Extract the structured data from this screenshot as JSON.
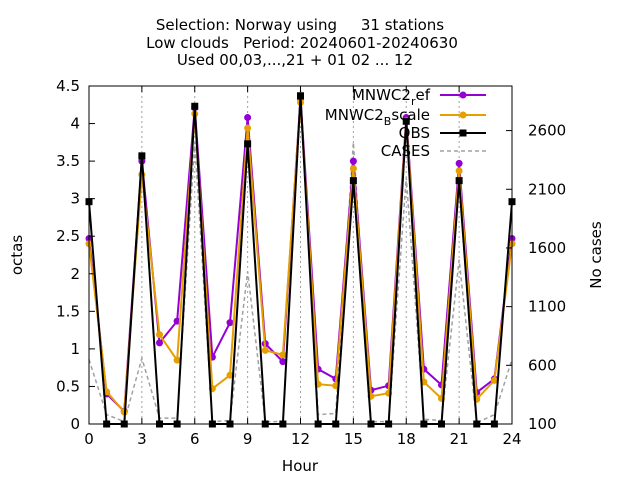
{
  "title_lines": [
    "Selection: Norway using     31 stations",
    "Low clouds   Period: 20240601-20240630",
    "Used 00,03,...,21 + 01 02 ... 12"
  ],
  "colors": {
    "ref": "#9400d3",
    "bscale": "#e69f00",
    "obs": "#000000",
    "cases": "#a0a0a0",
    "grid": "#a0a0a0"
  },
  "chart_data": {
    "type": "line",
    "xlabel": "Hour",
    "ylabel": "octas",
    "y2label": "No cases",
    "xlim": [
      0,
      24
    ],
    "ylim": [
      0,
      4.5
    ],
    "y2lim": [
      100,
      2980
    ],
    "xticks": [
      "0",
      "3",
      "6",
      "9",
      "12",
      "15",
      "18",
      "21",
      "24"
    ],
    "yticks": [
      "0",
      "0.5",
      "1",
      "1.5",
      "2",
      "2.5",
      "3",
      "3.5",
      "4",
      "4.5"
    ],
    "y2ticks": [
      "100",
      "600",
      "1100",
      "1600",
      "2100",
      "2600"
    ],
    "grid": true,
    "legend_position": "top-right",
    "x": [
      0,
      1,
      2,
      3,
      4,
      5,
      6,
      7,
      8,
      9,
      10,
      11,
      12,
      13,
      14,
      15,
      16,
      17,
      18,
      19,
      20,
      21,
      22,
      23,
      24
    ],
    "series": [
      {
        "name": "MNWC2_ref",
        "legend_main": "MNWC2",
        "legend_sub": "r",
        "legend_tail": "ef",
        "color_key": "ref",
        "marker": "circle",
        "axis": "y1",
        "values": [
          2.47,
          0.4,
          0.17,
          3.5,
          1.08,
          1.37,
          4.21,
          0.89,
          1.35,
          4.08,
          1.07,
          0.83,
          4.33,
          0.73,
          0.6,
          3.5,
          0.45,
          0.51,
          4.08,
          0.73,
          0.52,
          3.47,
          0.42,
          0.6,
          2.47
        ]
      },
      {
        "name": "MNWC2_Bscale",
        "legend_main": "MNWC2",
        "legend_sub": "B",
        "legend_tail": "scale",
        "color_key": "bscale",
        "marker": "circle",
        "axis": "y1",
        "values": [
          2.4,
          0.43,
          0.16,
          3.32,
          1.19,
          0.85,
          4.13,
          0.47,
          0.65,
          3.94,
          0.98,
          0.92,
          4.28,
          0.53,
          0.51,
          3.4,
          0.37,
          0.41,
          4.04,
          0.56,
          0.34,
          3.37,
          0.33,
          0.58,
          2.4
        ]
      },
      {
        "name": "OBS",
        "legend_main": "OBS",
        "legend_sub": "",
        "legend_tail": "",
        "color_key": "obs",
        "marker": "square",
        "axis": "y1",
        "values": [
          2.96,
          0,
          0,
          3.57,
          0,
          0,
          4.23,
          0,
          0,
          3.73,
          0,
          0,
          4.37,
          0,
          0,
          3.24,
          0,
          0,
          4.03,
          0,
          0,
          3.24,
          0,
          0,
          2.96
        ]
      },
      {
        "name": "CASES",
        "legend_main": "CASES",
        "legend_sub": "",
        "legend_tail": "",
        "color_key": "cases",
        "marker": "none",
        "dashed": true,
        "axis": "y2",
        "values": [
          650,
          180,
          120,
          660,
          150,
          150,
          2500,
          120,
          130,
          1400,
          120,
          120,
          2950,
          180,
          190,
          2500,
          120,
          120,
          2200,
          140,
          130,
          1500,
          110,
          180,
          650
        ]
      }
    ]
  }
}
